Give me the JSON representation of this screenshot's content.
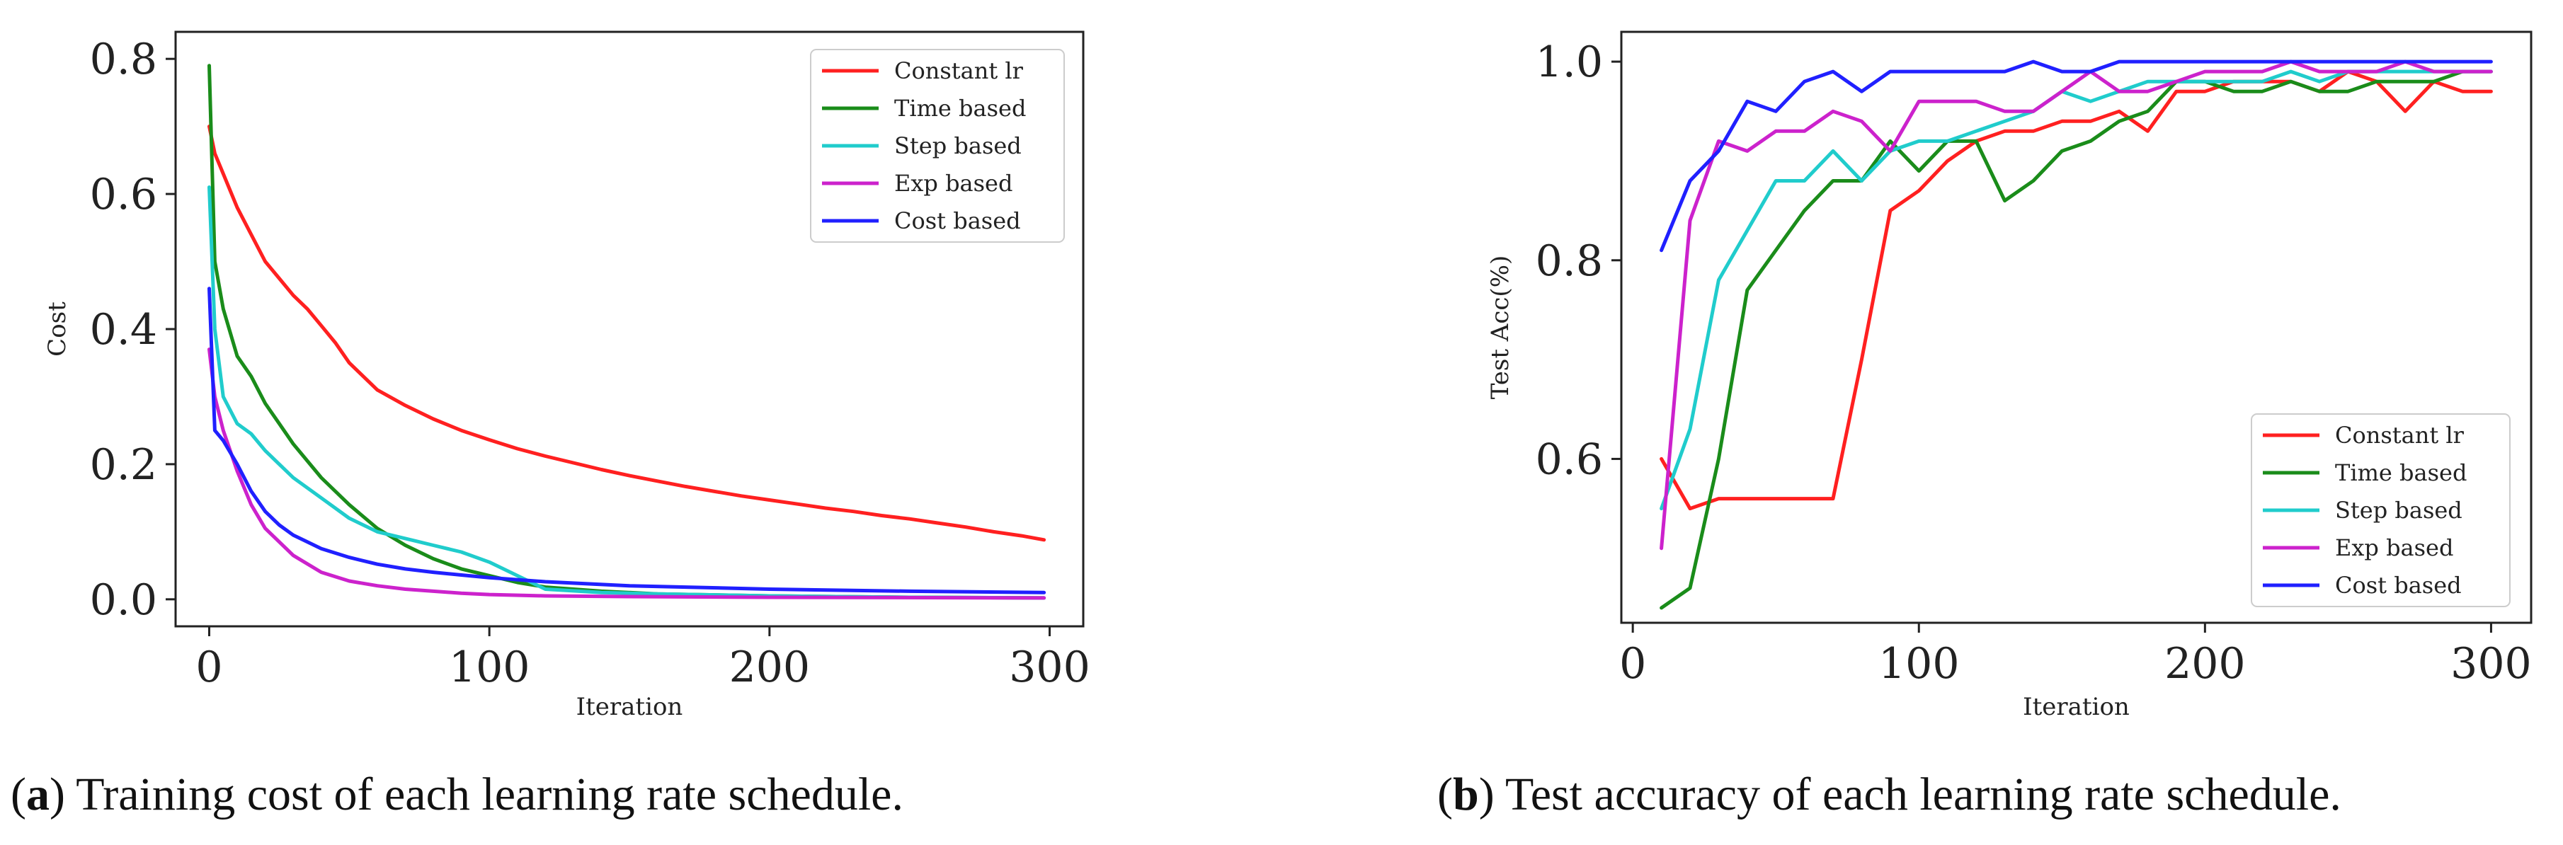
{
  "captions": [
    {
      "letter": "a",
      "text": "Training cost of each learning rate schedule."
    },
    {
      "letter": "b",
      "text": "Test accuracy of each learning rate schedule."
    }
  ],
  "colors": {
    "Constant lr": "#ff2020",
    "Time based": "#1a8c1a",
    "Step based": "#20cccc",
    "Exp based": "#cc22cc",
    "Cost based": "#2020ff"
  },
  "chart_data": [
    {
      "type": "line",
      "title": "",
      "xlabel": "Iteration",
      "ylabel": "Cost",
      "xlim": [
        -12,
        312
      ],
      "ylim": [
        -0.04,
        0.84
      ],
      "xticks": [
        0,
        100,
        200,
        300
      ],
      "yticks": [
        0.0,
        0.2,
        0.4,
        0.6,
        0.8
      ],
      "xtick_labels": [
        "0",
        "100",
        "200",
        "300"
      ],
      "ytick_labels": [
        "0.0",
        "0.2",
        "0.4",
        "0.6",
        "0.8"
      ],
      "grid": false,
      "legend_position": "top-right",
      "series": [
        {
          "name": "Constant lr",
          "x": [
            0,
            2,
            5,
            10,
            15,
            20,
            25,
            30,
            35,
            40,
            45,
            50,
            55,
            60,
            70,
            80,
            90,
            100,
            110,
            120,
            130,
            140,
            150,
            160,
            170,
            180,
            190,
            200,
            210,
            220,
            230,
            240,
            250,
            260,
            270,
            280,
            290,
            298
          ],
          "values": [
            0.7,
            0.66,
            0.63,
            0.58,
            0.54,
            0.5,
            0.475,
            0.45,
            0.43,
            0.405,
            0.38,
            0.35,
            0.33,
            0.31,
            0.287,
            0.267,
            0.25,
            0.236,
            0.223,
            0.212,
            0.202,
            0.192,
            0.183,
            0.175,
            0.167,
            0.16,
            0.153,
            0.147,
            0.141,
            0.135,
            0.13,
            0.124,
            0.119,
            0.113,
            0.107,
            0.1,
            0.094,
            0.088
          ]
        },
        {
          "name": "Time based",
          "x": [
            0,
            2,
            5,
            10,
            15,
            20,
            25,
            30,
            40,
            50,
            60,
            70,
            80,
            90,
            100,
            110,
            120,
            140,
            160,
            200,
            250,
            298
          ],
          "values": [
            0.79,
            0.5,
            0.43,
            0.36,
            0.33,
            0.29,
            0.26,
            0.23,
            0.18,
            0.14,
            0.105,
            0.08,
            0.06,
            0.045,
            0.035,
            0.025,
            0.018,
            0.012,
            0.008,
            0.005,
            0.003,
            0.002
          ]
        },
        {
          "name": "Step based",
          "x": [
            0,
            2,
            5,
            10,
            15,
            20,
            25,
            30,
            40,
            50,
            60,
            70,
            80,
            90,
            100,
            110,
            120,
            140,
            160,
            200,
            250,
            298
          ],
          "values": [
            0.61,
            0.4,
            0.3,
            0.26,
            0.245,
            0.22,
            0.2,
            0.18,
            0.15,
            0.12,
            0.1,
            0.09,
            0.08,
            0.07,
            0.055,
            0.035,
            0.015,
            0.01,
            0.008,
            0.005,
            0.003,
            0.002
          ]
        },
        {
          "name": "Exp based",
          "x": [
            0,
            2,
            5,
            10,
            15,
            20,
            25,
            30,
            40,
            50,
            60,
            70,
            80,
            90,
            100,
            120,
            150,
            200,
            298
          ],
          "values": [
            0.37,
            0.3,
            0.25,
            0.19,
            0.14,
            0.105,
            0.085,
            0.065,
            0.04,
            0.027,
            0.02,
            0.015,
            0.012,
            0.009,
            0.007,
            0.005,
            0.004,
            0.003,
            0.002
          ]
        },
        {
          "name": "Cost based",
          "x": [
            0,
            2,
            5,
            10,
            15,
            20,
            25,
            30,
            40,
            50,
            60,
            70,
            80,
            90,
            100,
            120,
            150,
            200,
            250,
            298
          ],
          "values": [
            0.46,
            0.25,
            0.235,
            0.2,
            0.16,
            0.13,
            0.11,
            0.095,
            0.075,
            0.062,
            0.052,
            0.045,
            0.04,
            0.036,
            0.032,
            0.026,
            0.02,
            0.015,
            0.012,
            0.01
          ]
        }
      ]
    },
    {
      "type": "line",
      "title": "",
      "xlabel": "Iteration",
      "ylabel": "Test Acc(%)",
      "xlim": [
        -4,
        314
      ],
      "ylim": [
        0.435,
        1.03
      ],
      "xticks": [
        0,
        100,
        200,
        300
      ],
      "yticks": [
        0.6,
        0.8,
        1.0
      ],
      "xtick_labels": [
        "0",
        "100",
        "200",
        "300"
      ],
      "ytick_labels": [
        "0.6",
        "0.8",
        "1.0"
      ],
      "grid": false,
      "legend_position": "bottom-right",
      "series": [
        {
          "name": "Constant lr",
          "x": [
            10,
            20,
            30,
            40,
            50,
            60,
            70,
            80,
            90,
            100,
            110,
            120,
            130,
            140,
            150,
            160,
            170,
            180,
            190,
            200,
            210,
            220,
            230,
            240,
            250,
            260,
            270,
            280,
            290,
            300
          ],
          "values": [
            0.6,
            0.55,
            0.56,
            0.56,
            0.56,
            0.56,
            0.56,
            0.7,
            0.85,
            0.87,
            0.9,
            0.92,
            0.93,
            0.93,
            0.94,
            0.94,
            0.95,
            0.93,
            0.97,
            0.97,
            0.98,
            0.98,
            0.98,
            0.97,
            0.99,
            0.98,
            0.95,
            0.98,
            0.97,
            0.97
          ]
        },
        {
          "name": "Time based",
          "x": [
            10,
            20,
            30,
            40,
            50,
            60,
            70,
            80,
            90,
            100,
            110,
            120,
            130,
            140,
            150,
            160,
            170,
            180,
            190,
            200,
            210,
            220,
            230,
            240,
            250,
            260,
            270,
            280,
            290,
            300
          ],
          "values": [
            0.45,
            0.47,
            0.6,
            0.77,
            0.81,
            0.85,
            0.88,
            0.88,
            0.92,
            0.89,
            0.92,
            0.92,
            0.86,
            0.88,
            0.91,
            0.92,
            0.94,
            0.95,
            0.98,
            0.98,
            0.97,
            0.97,
            0.98,
            0.97,
            0.97,
            0.98,
            0.98,
            0.98,
            0.99,
            0.99
          ]
        },
        {
          "name": "Step based",
          "x": [
            10,
            20,
            30,
            40,
            50,
            60,
            70,
            80,
            90,
            100,
            110,
            120,
            130,
            140,
            150,
            160,
            170,
            180,
            190,
            200,
            210,
            220,
            230,
            240,
            250,
            260,
            270,
            280,
            290,
            300
          ],
          "values": [
            0.55,
            0.63,
            0.78,
            0.83,
            0.88,
            0.88,
            0.91,
            0.88,
            0.91,
            0.92,
            0.92,
            0.93,
            0.94,
            0.95,
            0.97,
            0.96,
            0.97,
            0.98,
            0.98,
            0.98,
            0.98,
            0.98,
            0.99,
            0.98,
            0.99,
            0.99,
            0.99,
            0.99,
            0.99,
            0.99
          ]
        },
        {
          "name": "Exp based",
          "x": [
            10,
            20,
            30,
            40,
            50,
            60,
            70,
            80,
            90,
            100,
            110,
            120,
            130,
            140,
            150,
            160,
            170,
            180,
            190,
            200,
            210,
            220,
            230,
            240,
            250,
            260,
            270,
            280,
            290,
            300
          ],
          "values": [
            0.51,
            0.84,
            0.92,
            0.91,
            0.93,
            0.93,
            0.95,
            0.94,
            0.91,
            0.96,
            0.96,
            0.96,
            0.95,
            0.95,
            0.97,
            0.99,
            0.97,
            0.97,
            0.98,
            0.99,
            0.99,
            0.99,
            1.0,
            0.99,
            0.99,
            0.99,
            1.0,
            0.99,
            0.99,
            0.99
          ]
        },
        {
          "name": "Cost based",
          "x": [
            10,
            20,
            30,
            40,
            50,
            60,
            70,
            80,
            90,
            100,
            110,
            120,
            130,
            140,
            150,
            160,
            170,
            180,
            190,
            200,
            210,
            220,
            230,
            240,
            250,
            260,
            270,
            280,
            290,
            300
          ],
          "values": [
            0.81,
            0.88,
            0.91,
            0.96,
            0.95,
            0.98,
            0.99,
            0.97,
            0.99,
            0.99,
            0.99,
            0.99,
            0.99,
            1.0,
            0.99,
            0.99,
            1.0,
            1.0,
            1.0,
            1.0,
            1.0,
            1.0,
            1.0,
            1.0,
            1.0,
            1.0,
            1.0,
            1.0,
            1.0,
            1.0
          ]
        }
      ]
    }
  ]
}
